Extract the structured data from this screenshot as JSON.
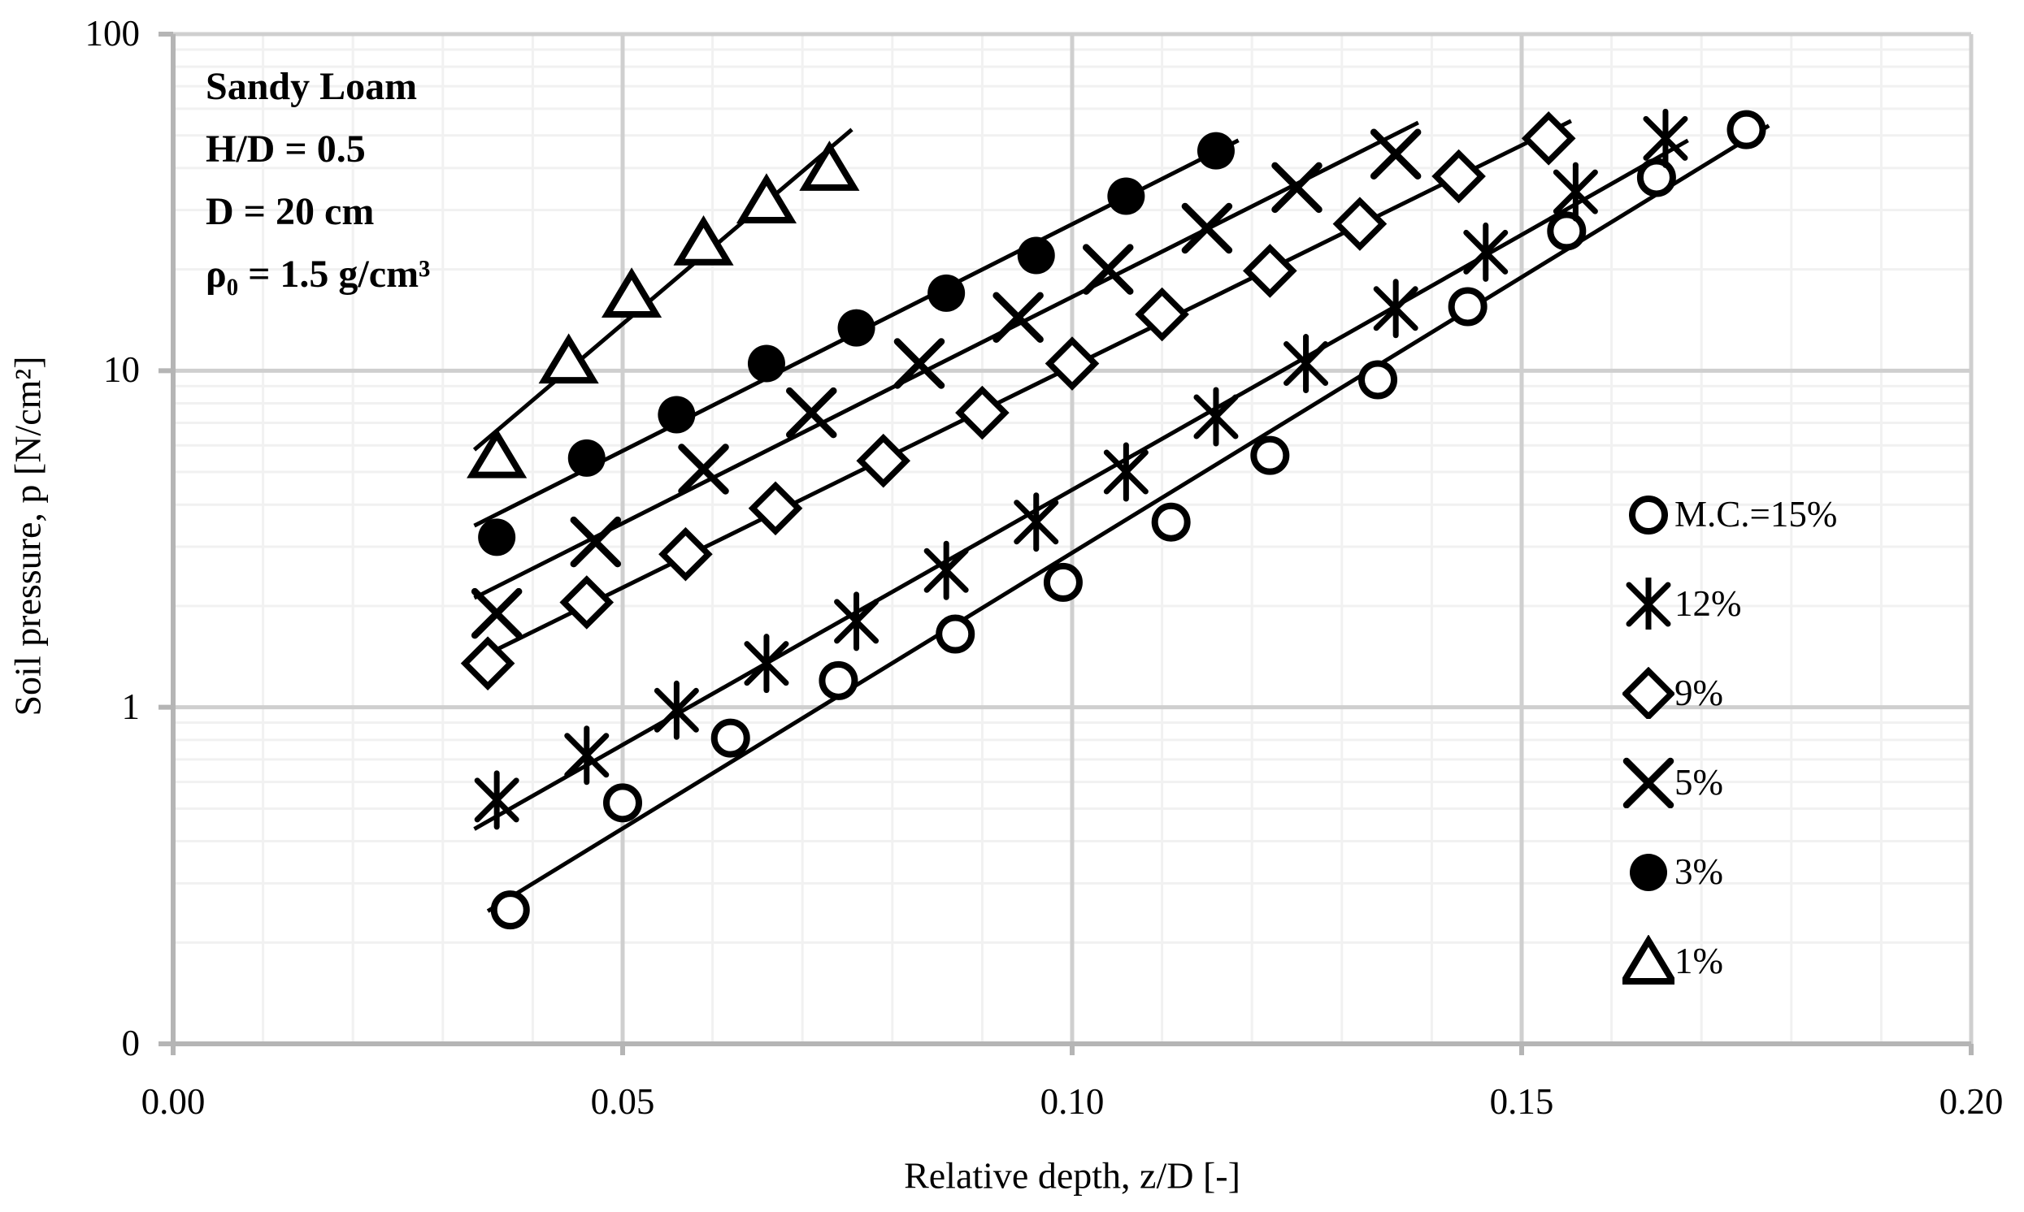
{
  "annotation": {
    "soil_type": "Sandy Loam",
    "hd_ratio": "H/D = 0.5",
    "diameter": "D = 20 cm",
    "density": "ρ₀ = 1.5 g/cm³"
  },
  "legend": {
    "entries": [
      {
        "marker": "circle-open",
        "label": "M.C.=15%"
      },
      {
        "marker": "star6",
        "label": "12%"
      },
      {
        "marker": "diamond-open",
        "label": "9%"
      },
      {
        "marker": "x-cross",
        "label": "5%"
      },
      {
        "marker": "circle-filled",
        "label": "3%"
      },
      {
        "marker": "triangle-open",
        "label": "1%"
      }
    ]
  },
  "chart_data": {
    "type": "scatter",
    "title": "",
    "xlabel": "Relative depth, z/D [-]",
    "ylabel": "Soil pressure, p [N/cm²]",
    "x_axis": {
      "min": 0.0,
      "max": 0.2,
      "minor_step": 0.01,
      "ticks": [
        {
          "label": "0.00",
          "value": 0.0
        },
        {
          "label": "0.05",
          "value": 0.05
        },
        {
          "label": "0.10",
          "value": 0.1
        },
        {
          "label": "0.15",
          "value": 0.15
        },
        {
          "label": "0.20",
          "value": 0.2
        }
      ]
    },
    "y_axis": {
      "scale": "log",
      "min": 0.1,
      "max": 100,
      "ticks": [
        {
          "label": "100",
          "value": 100
        },
        {
          "label": "10",
          "value": 10
        },
        {
          "label": "1",
          "value": 1
        },
        {
          "label": "0",
          "value": 0.1
        }
      ]
    },
    "grid": {
      "major_color": "#cfcfcf",
      "minor_color": "#f1f1f1",
      "axis_color": "#b5b5b5"
    },
    "series_color": "#000000",
    "trendlines": "exponential-fit",
    "series": [
      {
        "name": "M.C.=15%",
        "marker": "circle-open",
        "points": [
          [
            0.0375,
            0.25
          ],
          [
            0.05,
            0.52
          ],
          [
            0.062,
            0.81
          ],
          [
            0.074,
            1.2
          ],
          [
            0.087,
            1.65
          ],
          [
            0.099,
            2.35
          ],
          [
            0.111,
            3.55
          ],
          [
            0.122,
            5.6
          ],
          [
            0.134,
            9.4
          ],
          [
            0.144,
            15.5
          ],
          [
            0.155,
            26
          ],
          [
            0.165,
            37.5
          ],
          [
            0.175,
            52
          ]
        ]
      },
      {
        "name": "12%",
        "marker": "star6",
        "points": [
          [
            0.036,
            0.53
          ],
          [
            0.046,
            0.72
          ],
          [
            0.056,
            0.98
          ],
          [
            0.066,
            1.35
          ],
          [
            0.076,
            1.8
          ],
          [
            0.086,
            2.55
          ],
          [
            0.096,
            3.55
          ],
          [
            0.106,
            5.0
          ],
          [
            0.116,
            7.3
          ],
          [
            0.126,
            10.5
          ],
          [
            0.136,
            15.3
          ],
          [
            0.146,
            22.5
          ],
          [
            0.156,
            34
          ],
          [
            0.166,
            49
          ]
        ]
      },
      {
        "name": "9%",
        "marker": "diamond-open",
        "points": [
          [
            0.035,
            1.35
          ],
          [
            0.046,
            2.05
          ],
          [
            0.057,
            2.85
          ],
          [
            0.067,
            3.9
          ],
          [
            0.079,
            5.4
          ],
          [
            0.09,
            7.5
          ],
          [
            0.1,
            10.5
          ],
          [
            0.11,
            14.7
          ],
          [
            0.122,
            19.8
          ],
          [
            0.132,
            27.3
          ],
          [
            0.143,
            37.8
          ],
          [
            0.153,
            49
          ]
        ]
      },
      {
        "name": "5%",
        "marker": "x-cross",
        "points": [
          [
            0.036,
            1.9
          ],
          [
            0.047,
            3.1
          ],
          [
            0.059,
            5.1
          ],
          [
            0.071,
            7.5
          ],
          [
            0.083,
            10.5
          ],
          [
            0.094,
            14.4
          ],
          [
            0.104,
            20
          ],
          [
            0.115,
            26.5
          ],
          [
            0.125,
            35
          ],
          [
            0.136,
            44
          ]
        ]
      },
      {
        "name": "3%",
        "marker": "circle-filled",
        "points": [
          [
            0.036,
            3.2
          ],
          [
            0.046,
            5.5
          ],
          [
            0.056,
            7.4
          ],
          [
            0.066,
            10.5
          ],
          [
            0.076,
            13.4
          ],
          [
            0.086,
            17
          ],
          [
            0.096,
            22
          ],
          [
            0.106,
            33
          ],
          [
            0.116,
            45
          ]
        ]
      },
      {
        "name": "1%",
        "marker": "triangle-open",
        "points": [
          [
            0.036,
            5.6
          ],
          [
            0.044,
            10.7
          ],
          [
            0.051,
            16.8
          ],
          [
            0.059,
            24
          ],
          [
            0.066,
            32
          ],
          [
            0.073,
            40
          ]
        ]
      }
    ]
  }
}
